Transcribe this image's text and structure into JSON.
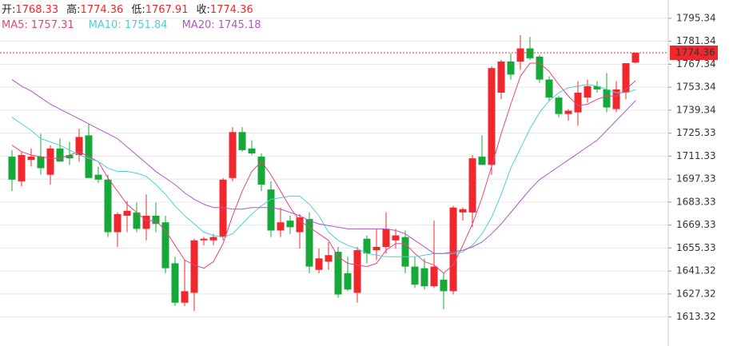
{
  "chart_data": {
    "type": "candlestick",
    "quote": [
      {
        "label": "开:",
        "value": 1768.33
      },
      {
        "label": "高:",
        "value": 1774.36
      },
      {
        "label": "低:",
        "value": 1767.91
      },
      {
        "label": "收:",
        "value": 1774.36
      }
    ],
    "last_price": 1774.36,
    "up_color": "#f0282d",
    "down_color": "#17a83a",
    "ylim": [
      1595.6,
      1806.5
    ],
    "yticks": [
      1613.32,
      1627.32,
      1641.32,
      1655.33,
      1669.33,
      1683.33,
      1697.33,
      1711.33,
      1725.33,
      1739.34,
      1753.34,
      1767.34,
      1781.34,
      1795.34
    ],
    "grid": true,
    "open": [
      1711,
      1696,
      1709,
      1711,
      1700,
      1716,
      1712,
      1712,
      1724,
      1700,
      1697,
      1665,
      1675,
      1677,
      1667,
      1675,
      1671,
      1646,
      1622,
      1628,
      1660,
      1660,
      1662,
      1698,
      1726,
      1716,
      1711,
      1691,
      1666,
      1672,
      1665,
      1673,
      1642,
      1647,
      1653,
      1640,
      1628,
      1661,
      1654,
      1656,
      1660,
      1662,
      1644,
      1643,
      1632,
      1636,
      1629,
      1677,
      1677,
      1711,
      1706,
      1750,
      1769,
      1769,
      1777,
      1772,
      1758,
      1747,
      1737,
      1738,
      1747,
      1754,
      1752,
      1740,
      1750,
      1768.33
    ],
    "high": [
      1715,
      1714,
      1716,
      1725,
      1718,
      1722,
      1720,
      1728,
      1731,
      1705,
      1700,
      1677,
      1684,
      1683,
      1688,
      1683,
      1675,
      1650,
      1648,
      1661,
      1662,
      1664,
      1698,
      1729,
      1729,
      1721,
      1713,
      1696,
      1680,
      1675,
      1676,
      1677,
      1655,
      1659,
      1656,
      1650,
      1656,
      1663,
      1667,
      1677,
      1667,
      1666,
      1650,
      1649,
      1672,
      1640,
      1681,
      1680,
      1712,
      1724,
      1766,
      1770,
      1774,
      1785,
      1784,
      1773,
      1760,
      1748,
      1740,
      1757,
      1758,
      1757,
      1762,
      1757,
      1768,
      1774.36
    ],
    "low": [
      1690,
      1693,
      1705,
      1700,
      1694,
      1708,
      1706,
      1708,
      1700,
      1695,
      1662,
      1656,
      1665,
      1665,
      1660,
      1665,
      1640,
      1620,
      1620,
      1617,
      1657,
      1657,
      1660,
      1696,
      1714,
      1712,
      1690,
      1662,
      1662,
      1664,
      1655,
      1640,
      1640,
      1642,
      1625,
      1629,
      1622,
      1646,
      1648,
      1652,
      1655,
      1640,
      1631,
      1630,
      1631,
      1618,
      1627,
      1672,
      1668,
      1706,
      1700,
      1746,
      1758,
      1764,
      1770,
      1756,
      1745,
      1735,
      1733,
      1730,
      1744,
      1750,
      1738,
      1738,
      1746,
      1767.91
    ],
    "close": [
      1697,
      1712,
      1711,
      1704,
      1716,
      1708,
      1710,
      1723,
      1698,
      1697,
      1665,
      1676,
      1678,
      1667,
      1675,
      1670,
      1643,
      1622,
      1629,
      1660,
      1661,
      1662,
      1697,
      1726,
      1715,
      1713,
      1694,
      1666,
      1671,
      1668,
      1674,
      1644,
      1649,
      1651,
      1627,
      1630,
      1654,
      1652,
      1656,
      1667,
      1663,
      1644,
      1633,
      1632,
      1644,
      1629,
      1680,
      1679,
      1710,
      1706,
      1765,
      1769,
      1761,
      1777,
      1771,
      1758,
      1747,
      1737,
      1739,
      1750,
      1754,
      1752,
      1741,
      1752,
      1768,
      1774.36
    ],
    "series": [
      {
        "name": "MA5: 1757.31",
        "color": "#e8457f",
        "values": [
          1718,
          1714,
          1712,
          1711,
          1710,
          1710,
          1712,
          1714,
          1711,
          1708,
          1698,
          1690,
          1682,
          1677,
          1672,
          1672,
          1666,
          1657,
          1648,
          1645,
          1643,
          1647,
          1658,
          1675,
          1690,
          1702,
          1708,
          1700,
          1690,
          1680,
          1672,
          1668,
          1664,
          1660,
          1650,
          1646,
          1645,
          1644,
          1646,
          1654,
          1658,
          1658,
          1652,
          1647,
          1645,
          1640,
          1645,
          1657,
          1670,
          1686,
          1705,
          1725,
          1743,
          1760,
          1768,
          1768,
          1763,
          1755,
          1748,
          1742,
          1743,
          1746,
          1748,
          1748,
          1752,
          1757.31
        ]
      },
      {
        "name": "MA10: 1751.84",
        "color": "#4fcfd6",
        "values": [
          1735,
          1731,
          1727,
          1722,
          1720,
          1718,
          1715,
          1712,
          1710,
          1708,
          1704,
          1702,
          1702,
          1701,
          1699,
          1694,
          1688,
          1681,
          1675,
          1670,
          1665,
          1663,
          1662,
          1664,
          1670,
          1676,
          1681,
          1685,
          1686,
          1687,
          1687,
          1682,
          1675,
          1665,
          1660,
          1657,
          1655,
          1652,
          1651,
          1650,
          1650,
          1650,
          1650,
          1651,
          1652,
          1652,
          1652,
          1653,
          1657,
          1664,
          1674,
          1688,
          1704,
          1716,
          1728,
          1738,
          1745,
          1750,
          1753,
          1754,
          1755,
          1754,
          1752,
          1750,
          1750,
          1751.84
        ]
      },
      {
        "name": "MA20: 1745.18",
        "color": "#b455c8",
        "values": [
          1758,
          1754,
          1751,
          1747,
          1743,
          1740,
          1737,
          1734,
          1731,
          1728,
          1725,
          1722,
          1717,
          1712,
          1707,
          1702,
          1698,
          1694,
          1689,
          1685,
          1682,
          1680,
          1680,
          1679,
          1679,
          1680,
          1680,
          1680,
          1679,
          1677,
          1675,
          1672,
          1670,
          1669,
          1668,
          1667,
          1667,
          1667,
          1667,
          1667,
          1666,
          1664,
          1660,
          1656,
          1652,
          1652,
          1653,
          1654,
          1656,
          1659,
          1664,
          1670,
          1677,
          1684,
          1691,
          1697,
          1701,
          1705,
          1709,
          1713,
          1717,
          1721,
          1727,
          1733,
          1739,
          1745.18
        ]
      }
    ]
  }
}
